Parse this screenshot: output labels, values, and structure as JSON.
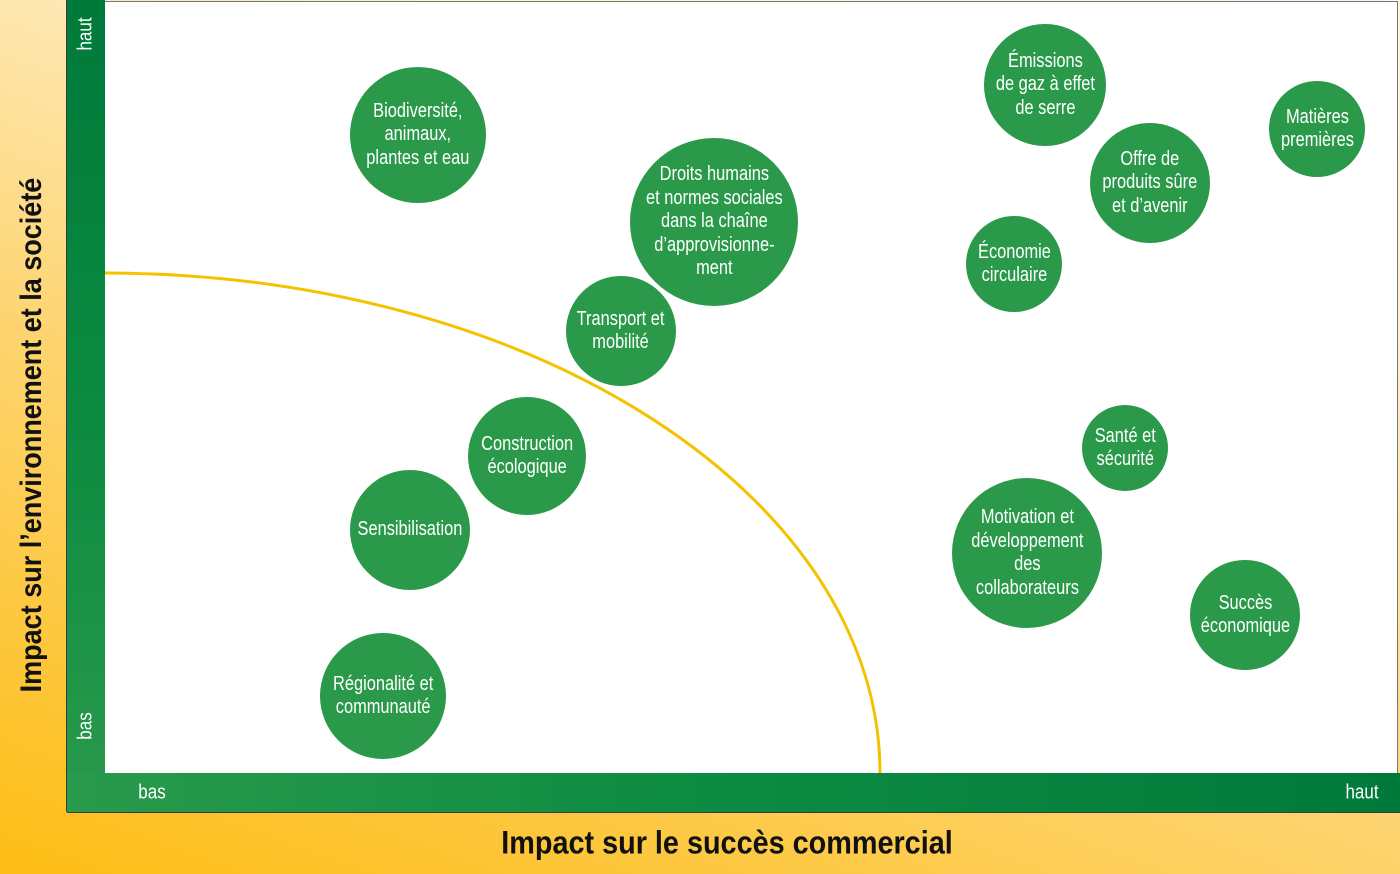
{
  "axes": {
    "y_title": "Impact sur l’environnement et la société",
    "x_title": "Impact sur le succès commercial",
    "y_low": "bas",
    "y_high": "haut",
    "x_low": "bas",
    "x_high": "haut"
  },
  "colors": {
    "bubble": "#2a9a4a",
    "axis_band": "#0b8a40",
    "threshold_curve": "#f5c200",
    "background": "#fdbd14"
  },
  "topics": [
    {
      "label": "Biodiversité,\nanimaux,\nplantes et eau"
    },
    {
      "label": "Droits humains\net normes sociales\ndans la chaîne\nd’approvisionne-\nment"
    },
    {
      "label": "Transport et\nmobilité"
    },
    {
      "label": "Construction\nécologique"
    },
    {
      "label": "Sensibilisation"
    },
    {
      "label": "Régionalité et\ncommunauté"
    },
    {
      "label": "Émissions\nde gaz à effet\nde serre"
    },
    {
      "label": "Matières\npremières"
    },
    {
      "label": "Offre de\nproduits sûre\net d’avenir"
    },
    {
      "label": "Économie\ncirculaire"
    },
    {
      "label": "Santé et\nsécurité"
    },
    {
      "label": "Motivation et\ndéveloppement\ndes\ncollaborateurs"
    },
    {
      "label": "Succès\néconomique"
    }
  ]
}
